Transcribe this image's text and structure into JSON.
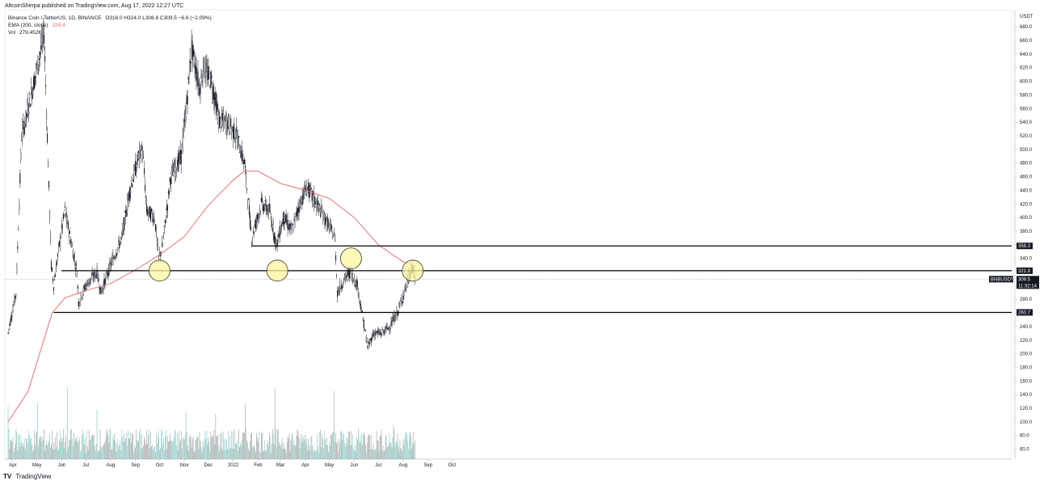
{
  "header": {
    "published": "AltcoinSherpa published on TradingView.com, Aug 17, 2022 12:27 UTC"
  },
  "legend": {
    "symbol_line": "Binance Coin / TetherUS, 1D, BINANCE",
    "ohlc": "O316.0  H324.0  L308.8  C309.5  −6.6 (−2.09%)",
    "ema_label": "EMA (200, close)",
    "ema_value": "328.4",
    "vol_label": "Vol",
    "vol_value": "279.452K"
  },
  "footer": {
    "brand": "TradingView",
    "logo": "TV"
  },
  "colors": {
    "candle": "#131722",
    "ema": "#e57373",
    "volume_up": "#80cbc4",
    "volume_down": "#9e9e9e",
    "circle_fill": "#fff59d",
    "circle_stroke": "#333333"
  },
  "chart_data": {
    "type": "candlestick",
    "title": "Binance Coin / TetherUS, 1D, BINANCE",
    "currency_label": "USDT",
    "ylim": [
      50,
      700
    ],
    "yticks": [
      "680.0",
      "660.0",
      "640.0",
      "620.0",
      "600.0",
      "580.0",
      "560.0",
      "540.0",
      "520.0",
      "500.0",
      "480.0",
      "460.0",
      "440.0",
      "420.0",
      "400.0",
      "380.0",
      "360.0",
      "340.0",
      "300.0",
      "280.0",
      "240.0",
      "220.0",
      "200.0",
      "180.0",
      "160.0",
      "140.0",
      "120.0",
      "100.0",
      "80.0",
      "60.0"
    ],
    "xticks": [
      "Apr",
      "May",
      "Jun",
      "Jul",
      "Aug",
      "Sep",
      "Oct",
      "Nov",
      "Dec",
      "2022",
      "Feb",
      "Mar",
      "Apr",
      "May",
      "Jun",
      "Jul",
      "Aug",
      "Sep",
      "Oct"
    ],
    "price_path": [
      [
        "2021-03-26",
        230
      ],
      [
        "2021-04-05",
        290
      ],
      [
        "2021-04-12",
        520
      ],
      [
        "2021-04-20",
        560
      ],
      [
        "2021-05-03",
        630
      ],
      [
        "2021-05-10",
        670
      ],
      [
        "2021-05-19",
        330
      ],
      [
        "2021-05-22",
        300
      ],
      [
        "2021-05-29",
        360
      ],
      [
        "2021-06-05",
        410
      ],
      [
        "2021-06-20",
        320
      ],
      [
        "2021-06-22",
        275
      ],
      [
        "2021-07-01",
        300
      ],
      [
        "2021-07-15",
        320
      ],
      [
        "2021-07-20",
        290
      ],
      [
        "2021-08-01",
        330
      ],
      [
        "2021-08-15",
        370
      ],
      [
        "2021-08-25",
        440
      ],
      [
        "2021-09-05",
        490
      ],
      [
        "2021-09-10",
        500
      ],
      [
        "2021-09-15",
        410
      ],
      [
        "2021-09-25",
        400
      ],
      [
        "2021-09-30",
        340
      ],
      [
        "2021-10-05",
        360
      ],
      [
        "2021-10-15",
        460
      ],
      [
        "2021-10-28",
        490
      ],
      [
        "2021-11-05",
        580
      ],
      [
        "2021-11-10",
        650
      ],
      [
        "2021-11-20",
        590
      ],
      [
        "2021-11-25",
        620
      ],
      [
        "2021-12-05",
        600
      ],
      [
        "2021-12-15",
        540
      ],
      [
        "2021-12-25",
        540
      ],
      [
        "2022-01-05",
        520
      ],
      [
        "2022-01-15",
        480
      ],
      [
        "2022-01-20",
        420
      ],
      [
        "2022-01-24",
        370
      ],
      [
        "2022-02-05",
        420
      ],
      [
        "2022-02-15",
        410
      ],
      [
        "2022-02-24",
        360
      ],
      [
        "2022-03-05",
        400
      ],
      [
        "2022-03-15",
        380
      ],
      [
        "2022-03-25",
        420
      ],
      [
        "2022-04-03",
        445
      ],
      [
        "2022-04-15",
        420
      ],
      [
        "2022-04-25",
        400
      ],
      [
        "2022-05-08",
        370
      ],
      [
        "2022-05-11",
        290
      ],
      [
        "2022-05-20",
        310
      ],
      [
        "2022-05-27",
        320
      ],
      [
        "2022-06-05",
        300
      ],
      [
        "2022-06-12",
        250
      ],
      [
        "2022-06-18",
        210
      ],
      [
        "2022-06-25",
        230
      ],
      [
        "2022-07-05",
        230
      ],
      [
        "2022-07-15",
        240
      ],
      [
        "2022-07-25",
        260
      ],
      [
        "2022-08-05",
        300
      ],
      [
        "2022-08-12",
        325
      ],
      [
        "2022-08-17",
        309.5
      ]
    ],
    "ema200": [
      [
        "2021-03-26",
        100
      ],
      [
        "2021-04-20",
        145
      ],
      [
        "2021-05-20",
        260
      ],
      [
        "2021-06-05",
        282
      ],
      [
        "2021-07-01",
        293
      ],
      [
        "2021-08-01",
        303
      ],
      [
        "2021-09-01",
        323
      ],
      [
        "2021-10-01",
        345
      ],
      [
        "2021-11-01",
        372
      ],
      [
        "2021-12-01",
        418
      ],
      [
        "2022-01-01",
        455
      ],
      [
        "2022-01-15",
        468
      ],
      [
        "2022-02-01",
        468
      ],
      [
        "2022-03-01",
        450
      ],
      [
        "2022-04-01",
        440
      ],
      [
        "2022-05-01",
        428
      ],
      [
        "2022-06-01",
        400
      ],
      [
        "2022-07-01",
        360
      ],
      [
        "2022-08-01",
        335
      ],
      [
        "2022-08-17",
        328.4
      ]
    ],
    "horizontal_levels": [
      {
        "label": "358.3",
        "value": 358.3
      },
      {
        "label": "321.9",
        "value": 321.9
      },
      {
        "label": "260.7",
        "value": 260.7
      }
    ],
    "last_price": {
      "symbol": "BNBUSDT",
      "value": "309.5",
      "countdown": "11:32:14"
    },
    "highlight_circles": [
      {
        "date": "2021-10-01",
        "value": 322
      },
      {
        "date": "2022-02-25",
        "value": 322
      },
      {
        "date": "2022-05-28",
        "value": 340
      },
      {
        "date": "2022-08-13",
        "value": 322
      }
    ],
    "xlabel": "",
    "ylabel": "USDT"
  }
}
